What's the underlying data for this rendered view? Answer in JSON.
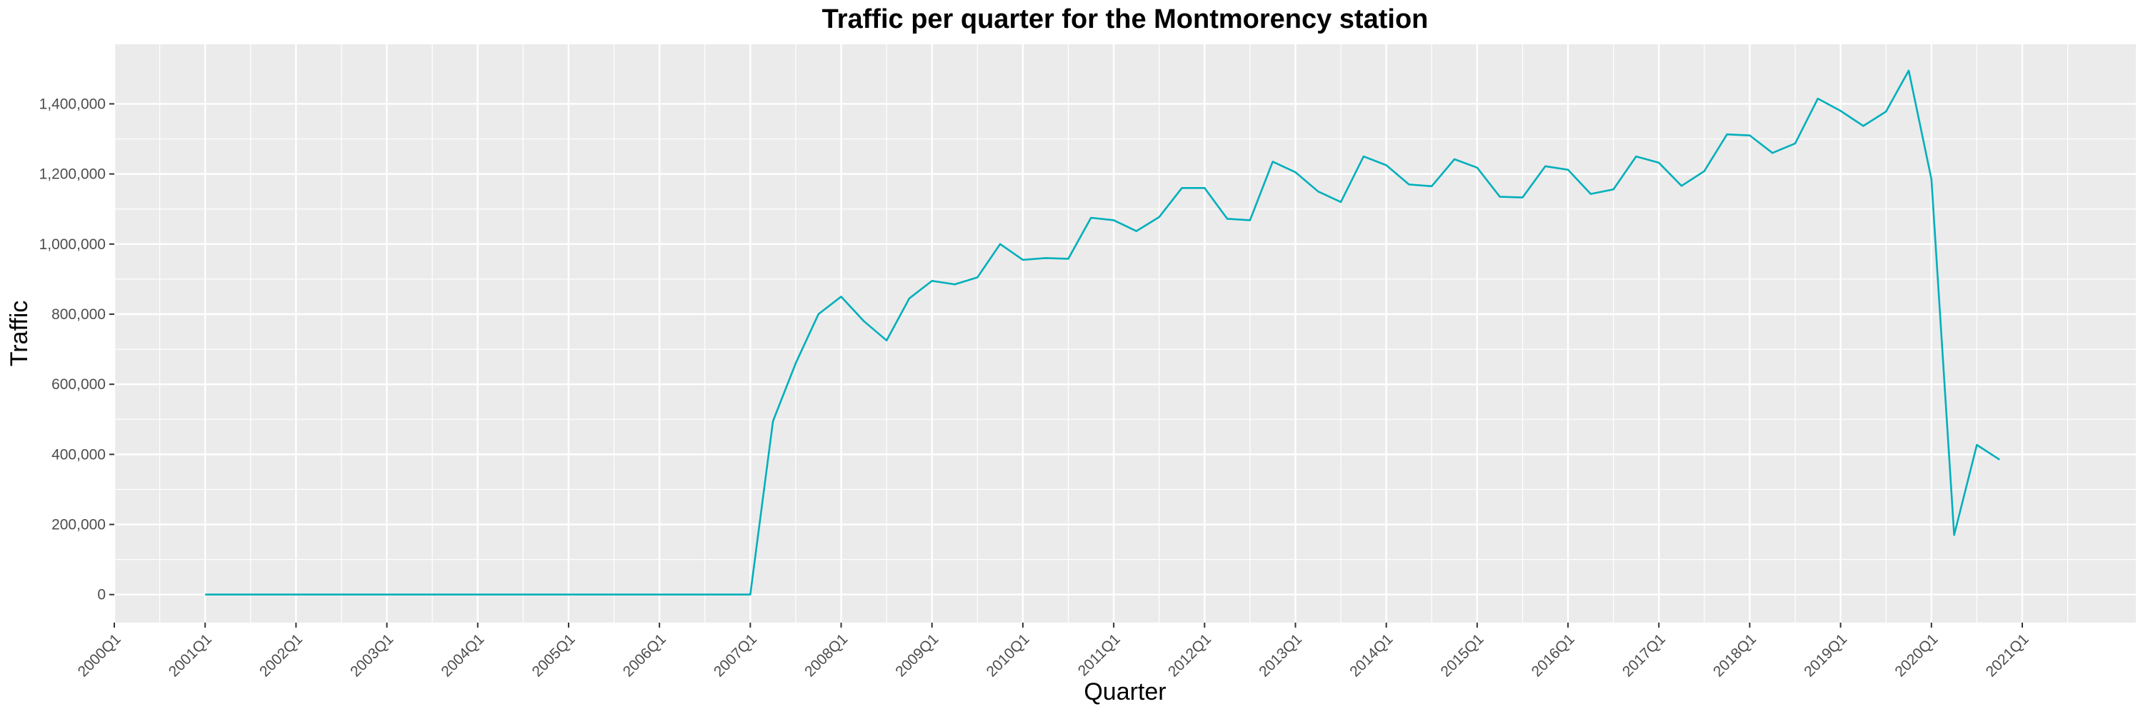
{
  "chart_data": {
    "type": "line",
    "title": "Traffic per quarter for the Montmorency station",
    "xlabel": "Quarter",
    "ylabel": "Traffic",
    "x_tick_labels": [
      "2000Q1",
      "2001Q1",
      "2002Q1",
      "2003Q1",
      "2004Q1",
      "2005Q1",
      "2006Q1",
      "2007Q1",
      "2008Q1",
      "2009Q1",
      "2010Q1",
      "2011Q1",
      "2012Q1",
      "2013Q1",
      "2014Q1",
      "2015Q1",
      "2016Q1",
      "2017Q1",
      "2018Q1",
      "2019Q1",
      "2020Q1",
      "2021Q1"
    ],
    "y_ticks": [
      0,
      200000,
      400000,
      600000,
      800000,
      1000000,
      1200000,
      1400000
    ],
    "y_tick_labels": [
      "0",
      "200,000",
      "400,000",
      "600,000",
      "800,000",
      "1,000,000",
      "1,200,000",
      "1,400,000"
    ],
    "xlim": [
      "2000Q1",
      "2022Q2"
    ],
    "ylim": [
      -80000,
      1570000
    ],
    "grid": true,
    "series": [
      {
        "color": "#00AFBB",
        "x": [
          "2001Q1",
          "2001Q2",
          "2001Q3",
          "2001Q4",
          "2002Q1",
          "2002Q2",
          "2002Q3",
          "2002Q4",
          "2003Q1",
          "2003Q2",
          "2003Q3",
          "2003Q4",
          "2004Q1",
          "2004Q2",
          "2004Q3",
          "2004Q4",
          "2005Q1",
          "2005Q2",
          "2005Q3",
          "2005Q4",
          "2006Q1",
          "2006Q2",
          "2006Q3",
          "2006Q4",
          "2007Q1",
          "2007Q2",
          "2007Q3",
          "2007Q4",
          "2008Q1",
          "2008Q2",
          "2008Q3",
          "2008Q4",
          "2009Q1",
          "2009Q2",
          "2009Q3",
          "2009Q4",
          "2010Q1",
          "2010Q2",
          "2010Q3",
          "2010Q4",
          "2011Q1",
          "2011Q2",
          "2011Q3",
          "2011Q4",
          "2012Q1",
          "2012Q2",
          "2012Q3",
          "2012Q4",
          "2013Q1",
          "2013Q2",
          "2013Q3",
          "2013Q4",
          "2014Q1",
          "2014Q2",
          "2014Q3",
          "2014Q4",
          "2015Q1",
          "2015Q2",
          "2015Q3",
          "2015Q4",
          "2016Q1",
          "2016Q2",
          "2016Q3",
          "2016Q4",
          "2017Q1",
          "2017Q2",
          "2017Q3",
          "2017Q4",
          "2018Q1",
          "2018Q2",
          "2018Q3",
          "2018Q4",
          "2019Q1",
          "2019Q2",
          "2019Q3",
          "2019Q4",
          "2020Q1",
          "2020Q2",
          "2020Q3",
          "2020Q4"
        ],
        "y": [
          0,
          0,
          0,
          0,
          0,
          0,
          0,
          0,
          0,
          0,
          0,
          0,
          0,
          0,
          0,
          0,
          0,
          0,
          0,
          0,
          0,
          0,
          0,
          0,
          0,
          495000,
          660000,
          800000,
          850000,
          780000,
          725000,
          845000,
          895000,
          885000,
          905000,
          1000000,
          955000,
          960000,
          958000,
          1075000,
          1068000,
          1037000,
          1077000,
          1160000,
          1160000,
          1072000,
          1068000,
          1235000,
          1205000,
          1150000,
          1120000,
          1250000,
          1225000,
          1170000,
          1165000,
          1242000,
          1218000,
          1135000,
          1133000,
          1222000,
          1212000,
          1143000,
          1156000,
          1250000,
          1232000,
          1166000,
          1208000,
          1313000,
          1310000,
          1260000,
          1287000,
          1415000,
          1380000,
          1337000,
          1378000,
          1495000,
          1185000,
          170000,
          427000,
          385000
        ]
      }
    ]
  }
}
